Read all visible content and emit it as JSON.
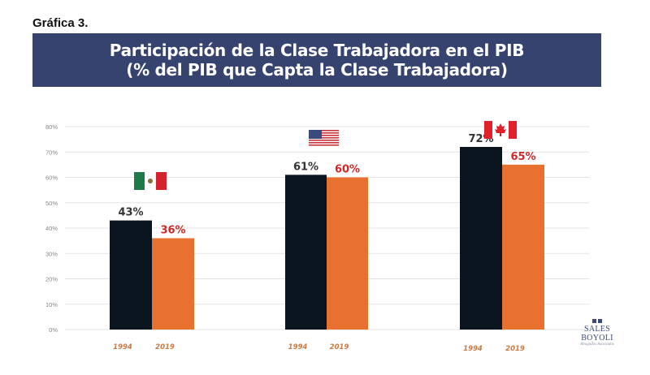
{
  "caption": "Gráfica 3.",
  "banner": {
    "line1": "Participación de la Clase Trabajadora en el PIB",
    "line2": "(% del PIB que Capta la Clase Trabajadora)",
    "background": "#36436f"
  },
  "logo": {
    "name": "SALES BOYOLI",
    "subtitle": "Abogados Asociados"
  },
  "chart_data": {
    "type": "bar",
    "title": "Participación de la Clase Trabajadora en el PIB (% del PIB que Capta la Clase Trabajadora)",
    "xlabel": "",
    "ylabel": "",
    "ylim": [
      0,
      80
    ],
    "yticks": [
      "0%",
      "10%",
      "20%",
      "30%",
      "40%",
      "50%",
      "60%",
      "70%",
      "80%"
    ],
    "grid": true,
    "legend": "none",
    "groups": [
      {
        "country": "Mexico",
        "flag": "mexico-flag",
        "categories": [
          "1994",
          "2019"
        ],
        "values": [
          43,
          36
        ],
        "labels": [
          "43%",
          "36%"
        ]
      },
      {
        "country": "United States",
        "flag": "usa-flag",
        "categories": [
          "1994",
          "2019"
        ],
        "values": [
          61,
          60
        ],
        "labels": [
          "61%",
          "60%"
        ]
      },
      {
        "country": "Canada",
        "flag": "canada-flag",
        "categories": [
          "1994",
          "2019"
        ],
        "values": [
          72,
          65
        ],
        "labels": [
          "72%",
          "65%"
        ]
      }
    ],
    "series": [
      {
        "name": "1994",
        "color": "#0b1520",
        "label_color": "#333333",
        "values": [
          43,
          61,
          72
        ]
      },
      {
        "name": "2019",
        "color": "#e8712f",
        "label_color": "#d42828",
        "values": [
          36,
          60,
          65
        ]
      }
    ],
    "xtick_color": "#c97a45"
  }
}
